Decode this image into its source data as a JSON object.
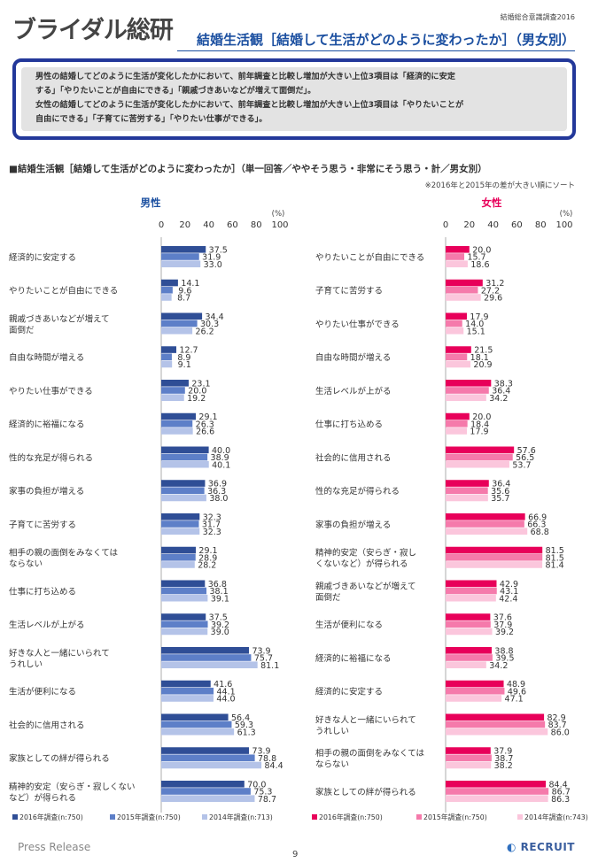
{
  "header": {
    "logo": "ブライダル総研",
    "survey_name": "結婚総合意識調査2016",
    "title": "結婚生活観［結婚して生活がどのように変わったか］（男女別）"
  },
  "summary": {
    "line1": "男性の結婚してどのように生活が変化したかにおいて、前年調査と比較し増加が大きい上位3項目は「経済的に安定",
    "line2": "する」「やりたいことが自由にできる」「親戚づきあいなどが増えて面倒だ」。",
    "line3": "女性の結婚してどのように生活が変化したかにおいて、前年調査と比較し増加が大きい上位3項目は「やりたいことが",
    "line4": "自由にできる」「子育てに苦労する」「やりたい仕事ができる」。"
  },
  "section_title": "■結婚生活観［結婚して生活がどのように変わったか］（単一回答／ややそう思う・非常にそう思う・計／男女別）",
  "sort_note": "※2016年と2015年の差が大きい順にソート",
  "footer": {
    "press_release": "Press Release",
    "page_number": "9",
    "brand": "RECRUIT"
  },
  "chart_data": [
    {
      "type": "bar",
      "orientation": "horizontal",
      "title": "男性",
      "unit": "(%)",
      "xlim": [
        0,
        100
      ],
      "ticks": [
        "0",
        "20",
        "40",
        "60",
        "80",
        "100"
      ],
      "colors": [
        "#2f4e96",
        "#5d7fc8",
        "#b4c3e8"
      ],
      "categories": [
        "経済的に安定する",
        "やりたいことが自由にできる",
        "親戚づきあいなどが増えて面倒だ",
        "自由な時間が増える",
        "やりたい仕事ができる",
        "経済的に裕福になる",
        "性的な充足が得られる",
        "家事の負担が増える",
        "子育てに苦労する",
        "相手の親の面倒をみなくてはならない",
        "仕事に打ち込める",
        "生活レベルが上がる",
        "好きな人と一緒にいられてうれしい",
        "生活が便利になる",
        "社会的に信用される",
        "家族としての絆が得られる",
        "精神的安定（安らぎ・寂しくないなど）が得られる"
      ],
      "label_lines": [
        [
          "経済的に安定する"
        ],
        [
          "やりたいことが自由にできる"
        ],
        [
          "親戚づきあいなどが増えて",
          "面倒だ"
        ],
        [
          "自由な時間が増える"
        ],
        [
          "やりたい仕事ができる"
        ],
        [
          "経済的に裕福になる"
        ],
        [
          "性的な充足が得られる"
        ],
        [
          "家事の負担が増える"
        ],
        [
          "子育てに苦労する"
        ],
        [
          "相手の親の面倒をみなくては",
          "ならない"
        ],
        [
          "仕事に打ち込める"
        ],
        [
          "生活レベルが上がる"
        ],
        [
          "好きな人と一緒にいられて",
          "うれしい"
        ],
        [
          "生活が便利になる"
        ],
        [
          "社会的に信用される"
        ],
        [
          "家族としての絆が得られる"
        ],
        [
          "精神的安定（安らぎ・寂しくない",
          "など）が得られる"
        ]
      ],
      "series": [
        {
          "name": "2016年調査(n:750)",
          "values": [
            37.5,
            14.1,
            34.4,
            12.7,
            23.1,
            29.1,
            40.0,
            36.9,
            32.3,
            29.1,
            36.8,
            37.5,
            73.9,
            41.6,
            56.4,
            73.9,
            70.0
          ]
        },
        {
          "name": "2015年調査(n:750)",
          "values": [
            31.9,
            9.6,
            30.3,
            8.9,
            20.0,
            26.3,
            38.9,
            36.3,
            31.7,
            28.9,
            38.1,
            39.2,
            75.7,
            44.1,
            59.3,
            78.8,
            75.3
          ]
        },
        {
          "name": "2014年調査(n:713)",
          "values": [
            33.0,
            8.7,
            26.2,
            9.1,
            19.2,
            26.6,
            40.1,
            38.0,
            32.3,
            28.2,
            39.1,
            39.0,
            81.1,
            44.0,
            61.3,
            84.4,
            78.7
          ]
        }
      ]
    },
    {
      "type": "bar",
      "orientation": "horizontal",
      "title": "女性",
      "unit": "(%)",
      "xlim": [
        0,
        100
      ],
      "ticks": [
        "0",
        "20",
        "40",
        "60",
        "80",
        "100"
      ],
      "colors": [
        "#e8005a",
        "#f57aab",
        "#fbc6dc"
      ],
      "categories": [
        "やりたいことが自由にできる",
        "子育てに苦労する",
        "やりたい仕事ができる",
        "自由な時間が増える",
        "生活レベルが上がる",
        "仕事に打ち込める",
        "社会的に信用される",
        "性的な充足が得られる",
        "家事の負担が増える",
        "精神的安定（安らぎ・寂しくないなど）が得られる",
        "親戚づきあいなどが増えて面倒だ",
        "生活が便利になる",
        "経済的に裕福になる",
        "経済的に安定する",
        "好きな人と一緒にいられてうれしい",
        "相手の親の面倒をみなくてはならない",
        "家族としての絆が得られる"
      ],
      "label_lines": [
        [
          "やりたいことが自由にできる"
        ],
        [
          "子育てに苦労する"
        ],
        [
          "やりたい仕事ができる"
        ],
        [
          "自由な時間が増える"
        ],
        [
          "生活レベルが上がる"
        ],
        [
          "仕事に打ち込める"
        ],
        [
          "社会的に信用される"
        ],
        [
          "性的な充足が得られる"
        ],
        [
          "家事の負担が増える"
        ],
        [
          "精神的安定（安らぎ・寂し",
          "くないなど）が得られる"
        ],
        [
          "親戚づきあいなどが増えて",
          "面倒だ"
        ],
        [
          "生活が便利になる"
        ],
        [
          "経済的に裕福になる"
        ],
        [
          "経済的に安定する"
        ],
        [
          "好きな人と一緒にいられて",
          "うれしい"
        ],
        [
          "相手の親の面倒をみなくては",
          "ならない"
        ],
        [
          "家族としての絆が得られる"
        ]
      ],
      "series": [
        {
          "name": "2016年調査(n:750)",
          "values": [
            20.0,
            31.2,
            17.9,
            21.5,
            38.3,
            20.0,
            57.6,
            36.4,
            66.9,
            81.5,
            42.9,
            37.6,
            38.8,
            48.9,
            82.9,
            37.9,
            84.4
          ]
        },
        {
          "name": "2015年調査(n:750)",
          "values": [
            15.7,
            27.2,
            14.0,
            18.1,
            36.4,
            18.4,
            56.5,
            35.6,
            66.3,
            81.5,
            43.1,
            37.9,
            39.5,
            49.6,
            83.7,
            38.7,
            86.7
          ]
        },
        {
          "name": "2014年調査(n:743)",
          "values": [
            18.6,
            29.6,
            15.1,
            20.9,
            34.2,
            17.9,
            53.7,
            35.7,
            68.8,
            81.4,
            42.4,
            39.2,
            34.2,
            47.1,
            86.0,
            38.2,
            86.3
          ]
        }
      ]
    }
  ]
}
